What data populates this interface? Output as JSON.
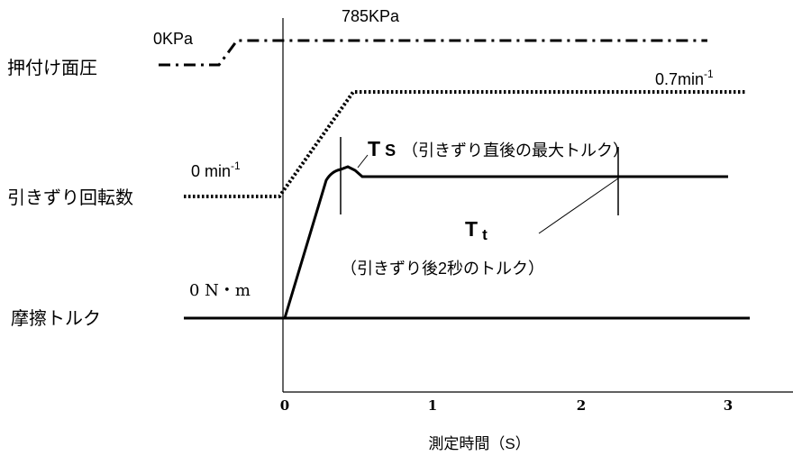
{
  "labels": {
    "pressure": "押付け面圧",
    "speed": "引きずり回転数",
    "torque": "摩擦トルク"
  },
  "annotations": {
    "pressure_start": "0KPa",
    "pressure_end": "785KPa",
    "speed_start": "0 min",
    "speed_end": "0.7min",
    "speed_unit_exp": "-1",
    "torque_start": "0 N・m",
    "ts_symbol": "T",
    "ts_sub": "S",
    "ts_desc": "（引きずり直後の最大トルク）",
    "tt_symbol": "T",
    "tt_sub": "t",
    "tt_desc": "（引きずり後2秒のトルク）"
  },
  "axis": {
    "xlabel": "測定時間（S）",
    "ticks": [
      "0",
      "1",
      "2",
      "3"
    ]
  }
}
